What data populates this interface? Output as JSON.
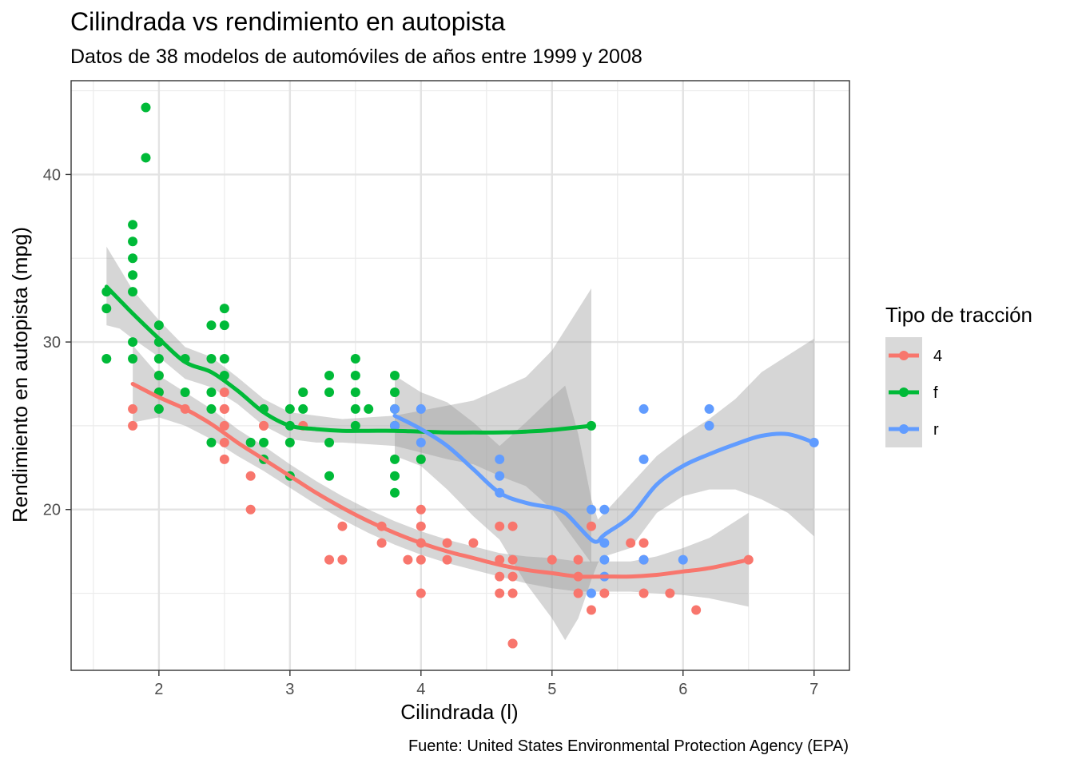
{
  "chart_data": {
    "type": "scatter",
    "title": "Cilindrada vs rendimiento en autopista",
    "subtitle": "Datos de 38 modelos de automóviles de años entre 1999 y 2008",
    "xlabel": "Cilindrada (l)",
    "ylabel": "Rendimiento en autopista (mpg)",
    "caption": "Fuente: United States Environmental Protection Agency (EPA)",
    "xlim": [
      1.33,
      7.27
    ],
    "ylim": [
      10.4,
      45.6
    ],
    "x_ticks": [
      "2",
      "3",
      "4",
      "5",
      "6",
      "7"
    ],
    "y_ticks": [
      "20",
      "30",
      "40"
    ],
    "grid": true,
    "legend": {
      "title": "Tipo de tracción",
      "position": "right"
    },
    "series": [
      {
        "name": "4",
        "color": "#F8766D",
        "points": [
          [
            1.8,
            26
          ],
          [
            1.8,
            25
          ],
          [
            2.0,
            28
          ],
          [
            2.0,
            27
          ],
          [
            2.8,
            25
          ],
          [
            2.8,
            25
          ],
          [
            3.1,
            25
          ],
          [
            3.1,
            27
          ],
          [
            2.5,
            26
          ],
          [
            2.5,
            27
          ],
          [
            2.5,
            26
          ],
          [
            2.5,
            24
          ],
          [
            2.5,
            23
          ],
          [
            2.5,
            25
          ],
          [
            2.2,
            26
          ],
          [
            2.7,
            20
          ],
          [
            2.7,
            22
          ],
          [
            3.3,
            17
          ],
          [
            3.4,
            17
          ],
          [
            3.4,
            19
          ],
          [
            4.0,
            20
          ],
          [
            4.0,
            17
          ],
          [
            4.0,
            18
          ],
          [
            4.0,
            19
          ],
          [
            4.0,
            15
          ],
          [
            3.7,
            18
          ],
          [
            3.7,
            19
          ],
          [
            3.9,
            17
          ],
          [
            4.2,
            17
          ],
          [
            4.2,
            18
          ],
          [
            4.4,
            18
          ],
          [
            4.6,
            17
          ],
          [
            4.6,
            16
          ],
          [
            4.6,
            15
          ],
          [
            4.6,
            19
          ],
          [
            4.7,
            16
          ],
          [
            4.7,
            17
          ],
          [
            4.7,
            15
          ],
          [
            4.7,
            19
          ],
          [
            4.7,
            12
          ],
          [
            4.7,
            12
          ],
          [
            5.0,
            17
          ],
          [
            5.2,
            16
          ],
          [
            5.2,
            15
          ],
          [
            5.2,
            17
          ],
          [
            5.3,
            19
          ],
          [
            5.3,
            14
          ],
          [
            5.4,
            15
          ],
          [
            5.7,
            17
          ],
          [
            5.7,
            18
          ],
          [
            5.6,
            18
          ],
          [
            5.7,
            15
          ],
          [
            5.9,
            15
          ],
          [
            6.1,
            14
          ],
          [
            6.5,
            17
          ]
        ],
        "smooth": [
          [
            1.8,
            27.5
          ],
          [
            2.0,
            26.7
          ],
          [
            2.2,
            26.0
          ],
          [
            2.4,
            25.1
          ],
          [
            2.6,
            24.0
          ],
          [
            2.8,
            23.0
          ],
          [
            3.0,
            22.0
          ],
          [
            3.2,
            21.0
          ],
          [
            3.4,
            20.1
          ],
          [
            3.6,
            19.3
          ],
          [
            3.8,
            18.6
          ],
          [
            4.0,
            18.0
          ],
          [
            4.2,
            17.5
          ],
          [
            4.4,
            17.1
          ],
          [
            4.6,
            16.7
          ],
          [
            4.8,
            16.4
          ],
          [
            5.0,
            16.2
          ],
          [
            5.2,
            16.0
          ],
          [
            5.4,
            16.0
          ],
          [
            5.6,
            16.0
          ],
          [
            5.8,
            16.1
          ],
          [
            6.0,
            16.3
          ],
          [
            6.2,
            16.5
          ],
          [
            6.5,
            17.0
          ]
        ],
        "ribbon": [
          [
            1.8,
            25.2,
            29.8
          ],
          [
            2.0,
            25.5,
            28.0
          ],
          [
            2.2,
            25.0,
            27.0
          ],
          [
            2.4,
            24.2,
            26.0
          ],
          [
            2.6,
            23.2,
            24.8
          ],
          [
            2.8,
            22.3,
            23.8
          ],
          [
            3.0,
            21.3,
            22.7
          ],
          [
            3.2,
            20.3,
            21.7
          ],
          [
            3.4,
            19.4,
            20.8
          ],
          [
            3.6,
            18.6,
            20.0
          ],
          [
            3.8,
            17.9,
            19.3
          ],
          [
            4.0,
            17.3,
            18.7
          ],
          [
            4.2,
            16.8,
            18.2
          ],
          [
            4.4,
            16.4,
            17.8
          ],
          [
            4.6,
            16.0,
            17.4
          ],
          [
            4.8,
            15.6,
            17.2
          ],
          [
            5.0,
            15.3,
            17.1
          ],
          [
            5.2,
            15.1,
            16.9
          ],
          [
            5.4,
            15.1,
            16.9
          ],
          [
            5.6,
            15.1,
            16.9
          ],
          [
            5.8,
            15.0,
            17.2
          ],
          [
            6.0,
            14.9,
            17.7
          ],
          [
            6.2,
            14.7,
            18.3
          ],
          [
            6.5,
            14.2,
            19.8
          ]
        ]
      },
      {
        "name": "f",
        "color": "#00BA38",
        "points": [
          [
            1.6,
            33
          ],
          [
            1.6,
            32
          ],
          [
            1.6,
            29
          ],
          [
            1.8,
            29
          ],
          [
            1.8,
            30
          ],
          [
            1.8,
            33
          ],
          [
            1.8,
            34
          ],
          [
            1.8,
            35
          ],
          [
            1.8,
            36
          ],
          [
            1.8,
            37
          ],
          [
            1.9,
            44
          ],
          [
            1.9,
            41
          ],
          [
            2.0,
            29
          ],
          [
            2.0,
            30
          ],
          [
            2.0,
            31
          ],
          [
            2.0,
            28
          ],
          [
            2.0,
            26
          ],
          [
            2.0,
            27
          ],
          [
            2.2,
            29
          ],
          [
            2.2,
            27
          ],
          [
            2.4,
            31
          ],
          [
            2.4,
            29
          ],
          [
            2.4,
            27
          ],
          [
            2.4,
            26
          ],
          [
            2.4,
            24
          ],
          [
            2.5,
            29
          ],
          [
            2.5,
            28
          ],
          [
            2.5,
            31
          ],
          [
            2.5,
            32
          ],
          [
            2.7,
            24
          ],
          [
            2.8,
            26
          ],
          [
            2.8,
            24
          ],
          [
            2.8,
            23
          ],
          [
            3.0,
            26
          ],
          [
            3.0,
            25
          ],
          [
            3.0,
            24
          ],
          [
            3.0,
            22
          ],
          [
            3.1,
            26
          ],
          [
            3.1,
            27
          ],
          [
            3.3,
            28
          ],
          [
            3.3,
            27
          ],
          [
            3.3,
            24
          ],
          [
            3.3,
            22
          ],
          [
            3.5,
            29
          ],
          [
            3.5,
            28
          ],
          [
            3.5,
            27
          ],
          [
            3.5,
            26
          ],
          [
            3.5,
            25
          ],
          [
            3.6,
            26
          ],
          [
            3.8,
            28
          ],
          [
            3.8,
            27
          ],
          [
            3.8,
            26
          ],
          [
            3.8,
            25
          ],
          [
            3.8,
            23
          ],
          [
            3.8,
            22
          ],
          [
            3.8,
            21
          ],
          [
            4.0,
            23
          ],
          [
            5.3,
            25
          ]
        ],
        "smooth": [
          [
            1.6,
            33.3
          ],
          [
            1.7,
            32.5
          ],
          [
            1.8,
            31.7
          ],
          [
            2.0,
            30.2
          ],
          [
            2.2,
            28.8
          ],
          [
            2.4,
            28.2
          ],
          [
            2.6,
            27.1
          ],
          [
            2.8,
            25.8
          ],
          [
            3.0,
            25.0
          ],
          [
            3.2,
            24.8
          ],
          [
            3.4,
            24.7
          ],
          [
            3.6,
            24.7
          ],
          [
            3.8,
            24.7
          ],
          [
            4.0,
            24.65
          ],
          [
            4.2,
            24.6
          ],
          [
            4.4,
            24.6
          ],
          [
            4.6,
            24.6
          ],
          [
            4.8,
            24.65
          ],
          [
            5.0,
            24.75
          ],
          [
            5.3,
            25.0
          ]
        ],
        "ribbon": [
          [
            1.6,
            31.0,
            35.7
          ],
          [
            1.7,
            30.8,
            34.4
          ],
          [
            1.8,
            30.2,
            33.1
          ],
          [
            2.0,
            29.1,
            31.3
          ],
          [
            2.2,
            27.8,
            29.7
          ],
          [
            2.4,
            27.3,
            29.1
          ],
          [
            2.6,
            26.3,
            27.9
          ],
          [
            2.8,
            25.0,
            26.6
          ],
          [
            3.0,
            24.2,
            25.8
          ],
          [
            3.2,
            24.0,
            25.6
          ],
          [
            3.4,
            24.0,
            25.4
          ],
          [
            3.6,
            23.9,
            25.5
          ],
          [
            3.8,
            23.8,
            25.6
          ],
          [
            4.0,
            23.4,
            25.9
          ],
          [
            4.2,
            23.0,
            26.2
          ],
          [
            4.4,
            22.7,
            26.5
          ],
          [
            4.6,
            22.0,
            27.2
          ],
          [
            4.8,
            21.4,
            27.9
          ],
          [
            5.0,
            20.0,
            29.5
          ],
          [
            5.3,
            16.8,
            33.2
          ]
        ]
      },
      {
        "name": "r",
        "color": "#619CFF",
        "points": [
          [
            3.8,
            26
          ],
          [
            3.8,
            25
          ],
          [
            4.0,
            26
          ],
          [
            4.0,
            24
          ],
          [
            4.6,
            23
          ],
          [
            4.6,
            22
          ],
          [
            4.6,
            21
          ],
          [
            5.3,
            20
          ],
          [
            5.3,
            15
          ],
          [
            5.4,
            20
          ],
          [
            5.4,
            18
          ],
          [
            5.4,
            17
          ],
          [
            5.4,
            16
          ],
          [
            5.7,
            26
          ],
          [
            5.7,
            23
          ],
          [
            5.7,
            17
          ],
          [
            6.0,
            17
          ],
          [
            6.2,
            26
          ],
          [
            6.2,
            25
          ],
          [
            7.0,
            24
          ]
        ],
        "smooth": [
          [
            3.8,
            25.6
          ],
          [
            4.0,
            24.8
          ],
          [
            4.2,
            23.8
          ],
          [
            4.4,
            22.4
          ],
          [
            4.6,
            21.0
          ],
          [
            4.8,
            20.4
          ],
          [
            5.0,
            20.1
          ],
          [
            5.1,
            19.8
          ],
          [
            5.2,
            19.0
          ],
          [
            5.3,
            18.2
          ],
          [
            5.35,
            18.1
          ],
          [
            5.4,
            18.5
          ],
          [
            5.6,
            19.6
          ],
          [
            5.8,
            21.5
          ],
          [
            6.0,
            22.6
          ],
          [
            6.2,
            23.3
          ],
          [
            6.4,
            23.9
          ],
          [
            6.6,
            24.4
          ],
          [
            6.8,
            24.5
          ],
          [
            7.0,
            24.0
          ]
        ],
        "ribbon": [
          [
            3.8,
            23.2,
            28.0
          ],
          [
            4.0,
            22.6,
            27.0
          ],
          [
            4.2,
            21.2,
            26.4
          ],
          [
            4.4,
            19.6,
            25.2
          ],
          [
            4.6,
            18.2,
            23.8
          ],
          [
            4.8,
            15.6,
            25.2
          ],
          [
            5.0,
            13.5,
            26.7
          ],
          [
            5.1,
            12.2,
            27.4
          ],
          [
            5.2,
            13.5,
            24.5
          ],
          [
            5.3,
            15.8,
            20.6
          ],
          [
            5.35,
            16.8,
            19.4
          ],
          [
            5.4,
            17.2,
            19.8
          ],
          [
            5.6,
            17.7,
            21.5
          ],
          [
            5.8,
            19.8,
            23.2
          ],
          [
            6.0,
            20.8,
            24.4
          ],
          [
            6.2,
            21.2,
            25.4
          ],
          [
            6.4,
            21.2,
            26.6
          ],
          [
            6.6,
            20.6,
            28.2
          ],
          [
            6.8,
            19.8,
            29.2
          ],
          [
            7.0,
            18.4,
            30.2
          ]
        ]
      }
    ]
  }
}
